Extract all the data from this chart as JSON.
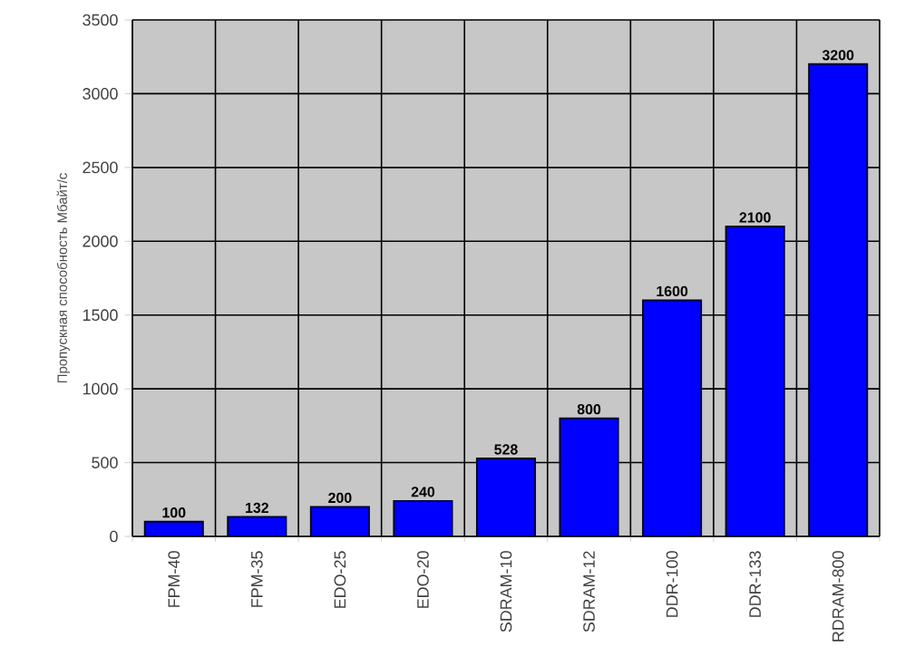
{
  "chart_data": {
    "type": "bar",
    "ylabel": "Пропускная способность Мбайт/с",
    "categories": [
      "FPM-40",
      "FPM-35",
      "EDO-25",
      "EDO-20",
      "SDRAM-10",
      "SDRAM-12",
      "DDR-100",
      "DDR-133",
      "RDRAM-800"
    ],
    "values": [
      100,
      132,
      200,
      240,
      528,
      800,
      1600,
      2100,
      3200
    ],
    "color": "#0000ff",
    "ylim": [
      0,
      3500
    ],
    "yticks": [
      0,
      500,
      1000,
      1500,
      2000,
      2500,
      3000,
      3500
    ],
    "grid": true,
    "data_labels": true
  }
}
